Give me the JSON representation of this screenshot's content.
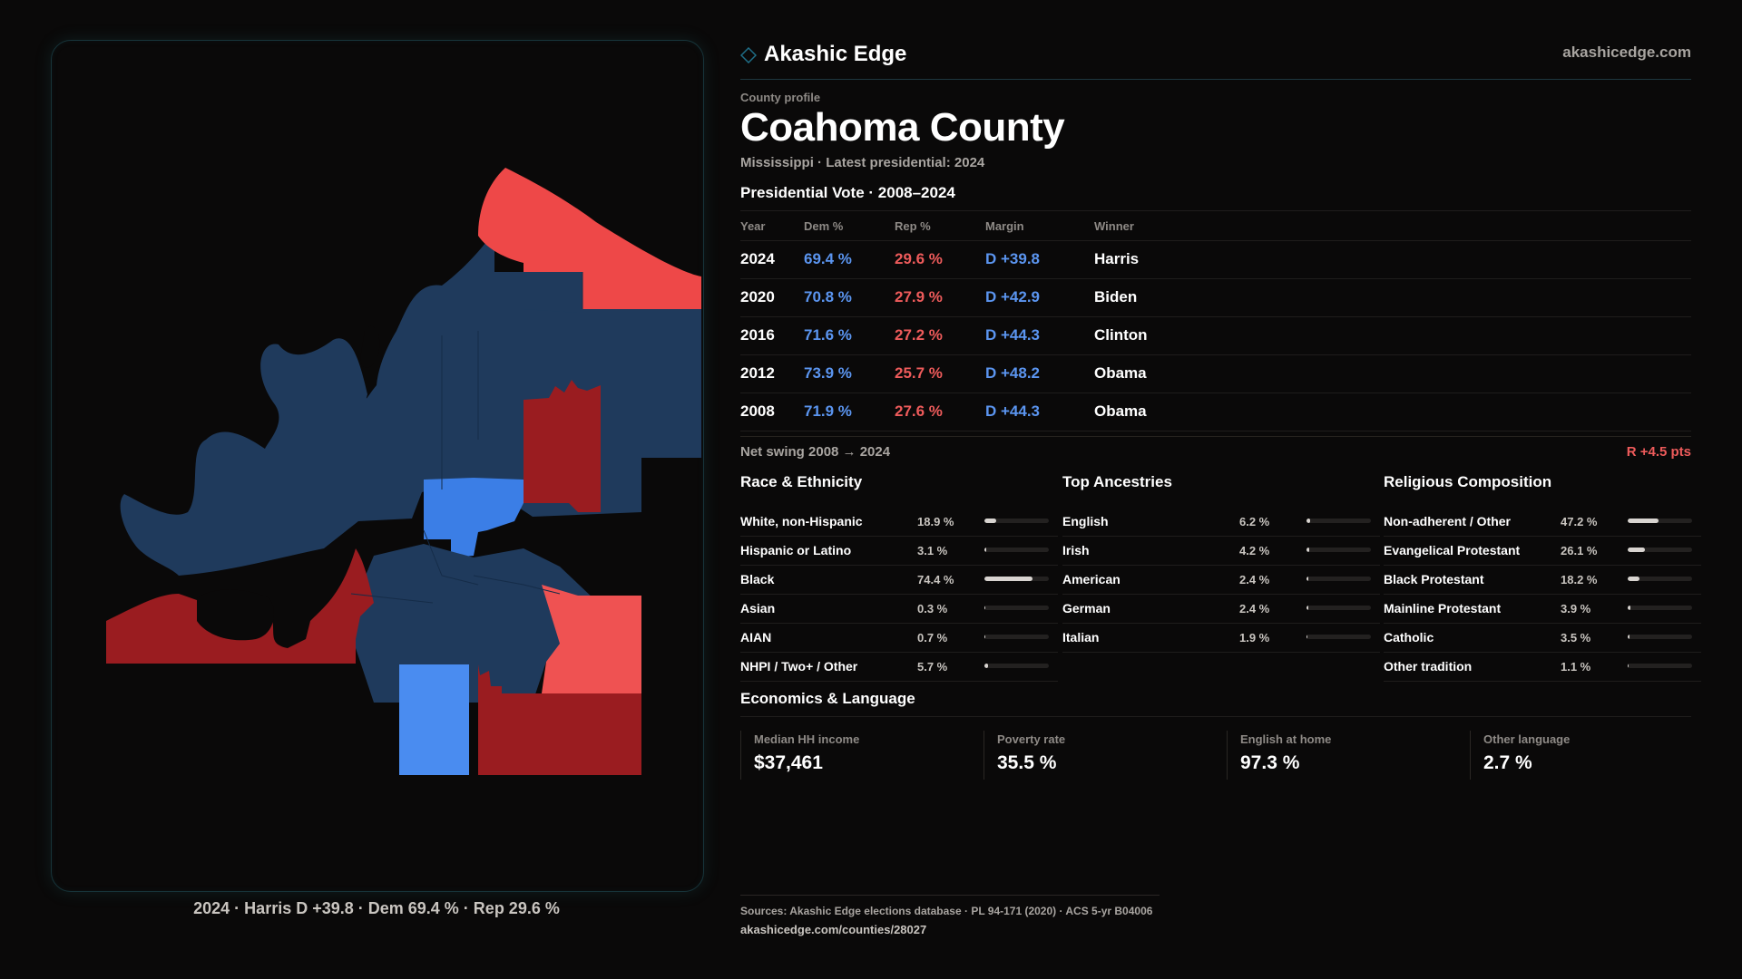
{
  "brand": {
    "name": "Akashic Edge",
    "url": "akashicedge.com"
  },
  "header": {
    "eyebrow": "County profile",
    "title": "Coahoma County",
    "subtitle": "Mississippi · Latest presidential: 2024"
  },
  "map": {
    "caption": "2024 · Harris D +39.8 · Dem 69.4 % · Rep 29.6 %",
    "colors": {
      "strong_dem": "#1f3a5c",
      "lean_dem": "#3b7ee6",
      "mid_dem": "#4a8cf0",
      "strong_rep": "#9a1c20",
      "lean_rep": "#ee4848",
      "mid_rep": "#ef5252"
    }
  },
  "presidential_vote": {
    "title": "Presidential Vote · 2008–2024",
    "columns": [
      "Year",
      "Dem %",
      "Rep %",
      "Margin",
      "Winner"
    ],
    "rows": [
      {
        "year": "2024",
        "dem": "69.4 %",
        "rep": "29.6 %",
        "margin": "D +39.8",
        "winner": "Harris"
      },
      {
        "year": "2020",
        "dem": "70.8 %",
        "rep": "27.9 %",
        "margin": "D +42.9",
        "winner": "Biden"
      },
      {
        "year": "2016",
        "dem": "71.6 %",
        "rep": "27.2 %",
        "margin": "D +44.3",
        "winner": "Clinton"
      },
      {
        "year": "2012",
        "dem": "73.9 %",
        "rep": "25.7 %",
        "margin": "D +48.2",
        "winner": "Obama"
      },
      {
        "year": "2008",
        "dem": "71.9 %",
        "rep": "27.6 %",
        "margin": "D +44.3",
        "winner": "Obama"
      }
    ],
    "swing_label": "Net swing 2008 → 2024",
    "swing_value": "R +4.5 pts"
  },
  "race": {
    "title": "Race & Ethnicity",
    "items": [
      {
        "label": "White, non-Hispanic",
        "value": "18.9 %",
        "pct": 18.9
      },
      {
        "label": "Hispanic or Latino",
        "value": "3.1 %",
        "pct": 3.1
      },
      {
        "label": "Black",
        "value": "74.4 %",
        "pct": 74.4
      },
      {
        "label": "Asian",
        "value": "0.3 %",
        "pct": 0.3
      },
      {
        "label": "AIAN",
        "value": "0.7 %",
        "pct": 0.7
      },
      {
        "label": "NHPI / Two+ / Other",
        "value": "5.7 %",
        "pct": 5.7
      }
    ]
  },
  "ancestry": {
    "title": "Top Ancestries",
    "items": [
      {
        "label": "English",
        "value": "6.2 %",
        "pct": 6.2
      },
      {
        "label": "Irish",
        "value": "4.2 %",
        "pct": 4.2
      },
      {
        "label": "American",
        "value": "2.4 %",
        "pct": 2.4
      },
      {
        "label": "German",
        "value": "2.4 %",
        "pct": 2.4
      },
      {
        "label": "Italian",
        "value": "1.9 %",
        "pct": 1.9
      }
    ]
  },
  "religion": {
    "title": "Religious Composition",
    "items": [
      {
        "label": "Non-adherent / Other",
        "value": "47.2 %",
        "pct": 47.2
      },
      {
        "label": "Evangelical Protestant",
        "value": "26.1 %",
        "pct": 26.1
      },
      {
        "label": "Black Protestant",
        "value": "18.2 %",
        "pct": 18.2
      },
      {
        "label": "Mainline Protestant",
        "value": "3.9 %",
        "pct": 3.9
      },
      {
        "label": "Catholic",
        "value": "3.5 %",
        "pct": 3.5
      },
      {
        "label": "Other tradition",
        "value": "1.1 %",
        "pct": 1.1
      }
    ]
  },
  "economics": {
    "title": "Economics & Language",
    "cards": [
      {
        "label": "Median HH income",
        "value": "$37,461"
      },
      {
        "label": "Poverty rate",
        "value": "35.5 %"
      },
      {
        "label": "English at home",
        "value": "97.3 %"
      },
      {
        "label": "Other language",
        "value": "2.7 %"
      }
    ]
  },
  "footer": {
    "sources": "Sources: Akashic Edge elections database · PL 94-171 (2020) · ACS 5-yr B04006",
    "link": "akashicedge.com/counties/28027"
  }
}
